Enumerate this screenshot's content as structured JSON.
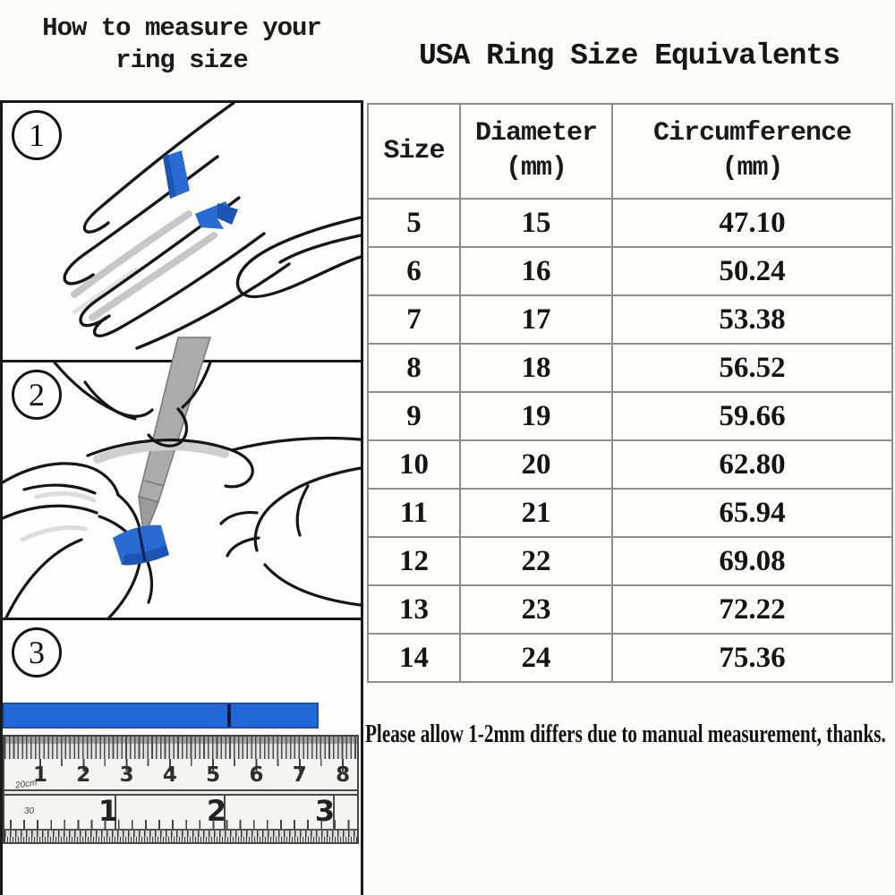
{
  "colors": {
    "strip_blue": "#2a6ad3",
    "strip_blue_dark": "#1c55b4",
    "outline_black": "#161616",
    "table_border": "#8d8d8d",
    "pen_gray": "#ababab"
  },
  "left_section": {
    "title_line1": "How to measure your",
    "title_line2": "ring size",
    "steps": [
      {
        "number": "1"
      },
      {
        "number": "2"
      },
      {
        "number": "3"
      }
    ],
    "ruler": {
      "cm_labels": [
        "1",
        "2",
        "3",
        "4",
        "5",
        "6",
        "7",
        "8"
      ],
      "cm_scale_label": "20cm",
      "inch_labels": [
        "1",
        "2",
        "3"
      ],
      "inch_scale_label": "30"
    }
  },
  "right_section": {
    "title": "USA Ring Size Equivalents",
    "table": {
      "columns": [
        {
          "label": "Size",
          "unit": ""
        },
        {
          "label": "Diameter",
          "unit": "(mm)"
        },
        {
          "label": "Circumference",
          "unit": "(mm)"
        }
      ],
      "rows": [
        [
          "5",
          "15",
          "47.10"
        ],
        [
          "6",
          "16",
          "50.24"
        ],
        [
          "7",
          "17",
          "53.38"
        ],
        [
          "8",
          "18",
          "56.52"
        ],
        [
          "9",
          "19",
          "59.66"
        ],
        [
          "10",
          "20",
          "62.80"
        ],
        [
          "11",
          "21",
          "65.94"
        ],
        [
          "12",
          "22",
          "69.08"
        ],
        [
          "13",
          "23",
          "72.22"
        ],
        [
          "14",
          "24",
          "75.36"
        ]
      ]
    },
    "note": "Please allow 1-2mm differs due to manual measurement, thanks."
  },
  "chart_data": {
    "type": "table",
    "title": "USA Ring Size Equivalents",
    "columns": [
      "Size",
      "Diameter (mm)",
      "Circumference (mm)"
    ],
    "rows": [
      [
        5,
        15,
        47.1
      ],
      [
        6,
        16,
        50.24
      ],
      [
        7,
        17,
        53.38
      ],
      [
        8,
        18,
        56.52
      ],
      [
        9,
        19,
        59.66
      ],
      [
        10,
        20,
        62.8
      ],
      [
        11,
        21,
        65.94
      ],
      [
        12,
        22,
        69.08
      ],
      [
        13,
        23,
        72.22
      ],
      [
        14,
        24,
        75.36
      ]
    ]
  }
}
